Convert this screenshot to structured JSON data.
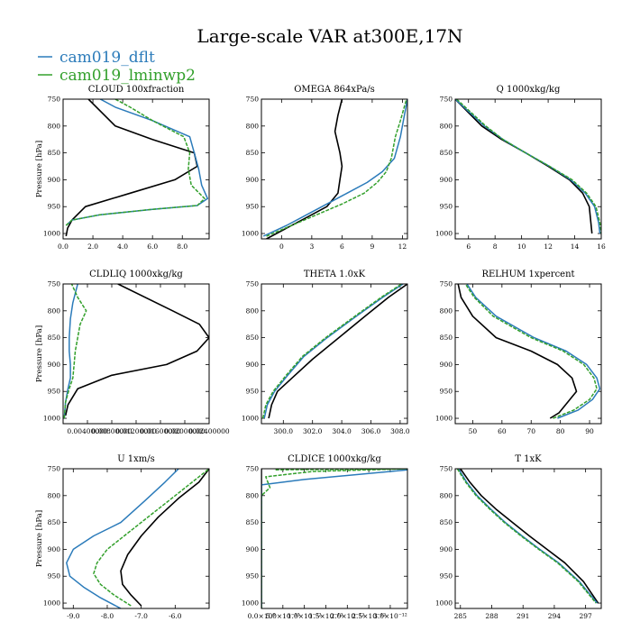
{
  "figure": {
    "title": "Large-scale VAR at300E,17N"
  },
  "legend": [
    {
      "name": "cam019_dflt",
      "color": "#2b7bba"
    },
    {
      "name": "cam019_lminwp2",
      "color": "#33a02c"
    }
  ],
  "colors": {
    "reference": "#000000",
    "dflt": "#2b7bba",
    "lminwp2": "#33a02c"
  },
  "chart_data": [
    {
      "type": "line",
      "title": "CLOUD 100xfraction",
      "ylabel": "Pressure [hPa]",
      "xlim": [
        0,
        9.8
      ],
      "ylim": [
        1010,
        750
      ],
      "xticks": [
        0,
        2,
        4,
        6,
        8
      ],
      "xtick_labels": [
        "0.0",
        "2.0",
        "4.0",
        "6.0",
        "8.0"
      ],
      "yticks": [
        750,
        800,
        850,
        900,
        950,
        1000
      ],
      "ytick_labels": [
        "750",
        "800",
        "850",
        "900",
        "950",
        "1000"
      ],
      "series": [
        {
          "name": "reference",
          "style": "ref",
          "x": [
            0.2,
            0.3,
            0.6,
            1.5,
            4.5,
            7.5,
            9.0,
            8.8,
            6.0,
            3.5,
            1.7
          ],
          "y": [
            1005,
            990,
            975,
            950,
            925,
            900,
            875,
            850,
            825,
            800,
            750
          ]
        },
        {
          "name": "cam019_dflt",
          "style": "dflt",
          "x": [
            0.2,
            0.6,
            2.5,
            6.0,
            9.0,
            9.7,
            9.3,
            9.1,
            8.8,
            8.5,
            6.0,
            3.5,
            2.5
          ],
          "y": [
            985,
            975,
            965,
            955,
            948,
            935,
            910,
            880,
            850,
            820,
            790,
            765,
            750
          ]
        },
        {
          "name": "cam019_lminwp2",
          "style": "lminwp2",
          "x": [
            0.2,
            0.6,
            2.5,
            6.0,
            9.0,
            9.5,
            8.6,
            8.4,
            8.5,
            8.1,
            6.0,
            4.5,
            3.5
          ],
          "y": [
            985,
            975,
            965,
            955,
            948,
            935,
            910,
            880,
            850,
            820,
            790,
            765,
            750
          ]
        }
      ]
    },
    {
      "type": "line",
      "title": "OMEGA 864xPa/s",
      "ylabel": "",
      "xlim": [
        -2,
        12.5
      ],
      "ylim": [
        1010,
        750
      ],
      "xticks": [
        0,
        3,
        6,
        9,
        12
      ],
      "xtick_labels": [
        "0",
        "3",
        "6",
        "9",
        "12"
      ],
      "yticks": [
        750,
        800,
        850,
        900,
        950,
        1000
      ],
      "ytick_labels": [
        "750",
        "800",
        "850",
        "900",
        "950",
        "1000"
      ],
      "series": [
        {
          "name": "reference",
          "style": "ref",
          "x": [
            -1.5,
            0.5,
            2.5,
            4.5,
            5.6,
            5.8,
            6.0,
            5.8,
            5.3,
            5.6,
            6.0
          ],
          "y": [
            1010,
            990,
            970,
            950,
            925,
            900,
            875,
            850,
            810,
            780,
            750
          ]
        },
        {
          "name": "cam019_dflt",
          "style": "dflt",
          "x": [
            -1.8,
            0.5,
            2.5,
            4.5,
            6.5,
            8.5,
            10.0,
            11.2,
            11.8,
            12.1,
            12.5
          ],
          "y": [
            1005,
            985,
            965,
            945,
            925,
            905,
            885,
            860,
            820,
            790,
            750
          ]
        },
        {
          "name": "cam019_lminwp2",
          "style": "lminwp2",
          "x": [
            -1.5,
            1.0,
            3.5,
            6.0,
            8.2,
            9.5,
            10.4,
            10.9,
            11.3,
            11.8,
            12.4
          ],
          "y": [
            1005,
            985,
            965,
            945,
            925,
            905,
            885,
            860,
            820,
            790,
            750
          ]
        }
      ]
    },
    {
      "type": "line",
      "title": "Q 1000xkg/kg",
      "ylabel": "",
      "xlim": [
        5,
        16
      ],
      "ylim": [
        1010,
        750
      ],
      "xticks": [
        6,
        8,
        10,
        12,
        14,
        16
      ],
      "xtick_labels": [
        "6",
        "8",
        "10",
        "12",
        "14",
        "16"
      ],
      "yticks": [
        750,
        800,
        850,
        900,
        950,
        1000
      ],
      "ytick_labels": [
        "750",
        "800",
        "850",
        "900",
        "950",
        "1000"
      ],
      "series": [
        {
          "name": "reference",
          "style": "ref",
          "x": [
            5.0,
            6.0,
            7.0,
            8.5,
            10.3,
            12.0,
            13.6,
            14.6,
            15.1,
            15.3
          ],
          "y": [
            750,
            775,
            800,
            825,
            850,
            875,
            900,
            925,
            950,
            1000
          ]
        },
        {
          "name": "cam019_dflt",
          "style": "dflt",
          "x": [
            5.0,
            6.1,
            7.2,
            8.6,
            10.3,
            12.1,
            13.7,
            14.8,
            15.5,
            15.8,
            15.9
          ],
          "y": [
            750,
            775,
            800,
            825,
            850,
            875,
            900,
            925,
            950,
            980,
            1000
          ]
        },
        {
          "name": "cam019_lminwp2",
          "style": "lminwp2",
          "x": [
            5.1,
            6.2,
            7.3,
            8.6,
            10.3,
            12.1,
            13.8,
            14.9,
            15.6,
            15.9,
            16.0
          ],
          "y": [
            750,
            775,
            800,
            825,
            850,
            875,
            900,
            925,
            950,
            980,
            1000
          ]
        }
      ]
    },
    {
      "type": "line",
      "title": "CLDLIQ 1000xkg/kg",
      "ylabel": "Pressure [hPa]",
      "xlim": [
        0,
        0.00012
      ],
      "ylim": [
        1010,
        750
      ],
      "xticks": [
        2e-05,
        4e-05,
        6e-05,
        8e-05,
        0.0001,
        0.00012
      ],
      "xtick_labels": [
        "0.00400000",
        "0.00800000",
        "0.01200000",
        "0.01600000",
        "0.02000000",
        "0.02400000"
      ],
      "yticks": [
        750,
        800,
        850,
        900,
        950,
        1000
      ],
      "ytick_labels": [
        "750",
        "800",
        "850",
        "900",
        "950",
        "1000"
      ],
      "series": [
        {
          "name": "reference",
          "style": "ref",
          "x": [
            2e-06,
            4e-06,
            1.2e-05,
            4e-05,
            8.5e-05,
            0.00011,
            0.00012,
            0.000112,
            9e-05,
            4.5e-05
          ],
          "y": [
            995,
            975,
            945,
            920,
            900,
            875,
            850,
            825,
            800,
            750
          ]
        },
        {
          "name": "cam019_dflt",
          "style": "dflt",
          "x": [
            1e-06,
            2e-06,
            4e-06,
            6e-06,
            6e-06,
            5e-06,
            5e-06,
            6e-06,
            8e-06,
            1.2e-05
          ],
          "y": [
            1000,
            970,
            945,
            925,
            900,
            875,
            850,
            815,
            785,
            750
          ]
        },
        {
          "name": "cam019_lminwp2",
          "style": "lminwp2",
          "x": [
            1e-06,
            2e-06,
            5e-06,
            8e-06,
            9e-06,
            1e-05,
            1.2e-05,
            1.4e-05,
            1.9e-05,
            1.2e-05,
            7e-06
          ],
          "y": [
            1000,
            970,
            945,
            925,
            900,
            875,
            850,
            825,
            800,
            775,
            750
          ]
        }
      ]
    },
    {
      "type": "line",
      "title": "THETA 1.0xK",
      "ylabel": "",
      "xlim": [
        298.5,
        308.5
      ],
      "ylim": [
        1010,
        750
      ],
      "xticks": [
        300,
        302,
        304,
        306,
        308
      ],
      "xtick_labels": [
        "300.0",
        "302.0",
        "304.0",
        "306.0",
        "308.0"
      ],
      "yticks": [
        750,
        800,
        850,
        900,
        950,
        1000
      ],
      "ytick_labels": [
        "750",
        "800",
        "850",
        "900",
        "950",
        "1000"
      ],
      "series": [
        {
          "name": "reference",
          "style": "ref",
          "x": [
            299.0,
            299.2,
            299.6,
            300.6,
            302.0,
            303.8,
            305.6,
            307.2,
            308.5
          ],
          "y": [
            1000,
            975,
            950,
            925,
            890,
            850,
            810,
            775,
            750
          ]
        },
        {
          "name": "cam019_dflt",
          "style": "dflt",
          "x": [
            298.7,
            298.9,
            299.4,
            300.3,
            301.4,
            303.0,
            305.0,
            306.8,
            308.2
          ],
          "y": [
            1000,
            975,
            950,
            920,
            885,
            850,
            810,
            775,
            750
          ]
        },
        {
          "name": "cam019_lminwp2",
          "style": "lminwp2",
          "x": [
            298.6,
            298.8,
            299.3,
            300.2,
            301.3,
            302.9,
            304.9,
            306.7,
            308.1
          ],
          "y": [
            1000,
            975,
            950,
            920,
            885,
            850,
            810,
            775,
            750
          ]
        }
      ]
    },
    {
      "type": "line",
      "title": "RELHUM 1xpercent",
      "ylabel": "",
      "xlim": [
        44,
        94
      ],
      "ylim": [
        1010,
        750
      ],
      "xticks": [
        50,
        60,
        70,
        80,
        90
      ],
      "xtick_labels": [
        "50",
        "60",
        "70",
        "80",
        "90"
      ],
      "yticks": [
        750,
        800,
        850,
        900,
        950,
        1000
      ],
      "ytick_labels": [
        "750",
        "800",
        "850",
        "900",
        "950",
        "1000"
      ],
      "series": [
        {
          "name": "reference",
          "style": "ref",
          "x": [
            76.5,
            79.5,
            82.5,
            85.5,
            84.0,
            79.0,
            70.0,
            58.0,
            50.0,
            46.0,
            45.0
          ],
          "y": [
            1000,
            990,
            970,
            950,
            925,
            900,
            875,
            850,
            810,
            775,
            750
          ]
        },
        {
          "name": "cam019_dflt",
          "style": "dflt",
          "x": [
            79.0,
            86.0,
            91.0,
            93.5,
            92.5,
            89.0,
            82.0,
            71.0,
            58.0,
            51.0,
            48.0
          ],
          "y": [
            1000,
            985,
            965,
            945,
            925,
            900,
            875,
            850,
            810,
            775,
            750
          ]
        },
        {
          "name": "cam019_lminwp2",
          "style": "lminwp2",
          "x": [
            77.5,
            84.5,
            90.0,
            92.5,
            91.5,
            88.0,
            81.0,
            70.0,
            57.0,
            50.5,
            47.5
          ],
          "y": [
            1000,
            985,
            965,
            945,
            925,
            900,
            875,
            850,
            810,
            775,
            750
          ]
        }
      ]
    },
    {
      "type": "line",
      "title": "U 1xm/s",
      "ylabel": "Pressure [hPa]",
      "xlim": [
        -9.3,
        -5.0
      ],
      "ylim": [
        1010,
        750
      ],
      "xticks": [
        -9,
        -8,
        -7,
        -6
      ],
      "xtick_labels": [
        "-9.0",
        "-8.0",
        "-7.0",
        "-6.0"
      ],
      "yticks": [
        750,
        800,
        850,
        900,
        950,
        1000
      ],
      "ytick_labels": [
        "750",
        "800",
        "850",
        "900",
        "950",
        "1000"
      ],
      "series": [
        {
          "name": "reference",
          "style": "ref",
          "x": [
            -7.0,
            -7.3,
            -7.55,
            -7.6,
            -7.4,
            -7.0,
            -6.5,
            -5.9,
            -5.3,
            -5.0
          ],
          "y": [
            1005,
            985,
            965,
            940,
            910,
            875,
            840,
            805,
            775,
            750
          ]
        },
        {
          "name": "cam019_dflt",
          "style": "dflt",
          "x": [
            -7.6,
            -8.2,
            -8.7,
            -9.1,
            -9.2,
            -9.0,
            -8.4,
            -7.6,
            -6.9,
            -6.3,
            -5.9
          ],
          "y": [
            1010,
            990,
            970,
            950,
            925,
            900,
            875,
            850,
            810,
            775,
            750
          ]
        },
        {
          "name": "cam019_lminwp2",
          "style": "lminwp2",
          "x": [
            -7.3,
            -7.8,
            -8.2,
            -8.4,
            -8.3,
            -8.0,
            -7.5,
            -6.9,
            -6.2,
            -5.5,
            -5.0
          ],
          "y": [
            1005,
            985,
            965,
            945,
            925,
            900,
            875,
            845,
            810,
            775,
            750
          ]
        }
      ]
    },
    {
      "type": "line",
      "title": "CLDICE 1000xkg/kg",
      "ylabel": "",
      "xlim": [
        0,
        3.4e-12
      ],
      "ylim": [
        1010,
        750
      ],
      "xticks": [
        0,
        5e-13,
        1e-12,
        1.5e-12,
        2e-12,
        2.5e-12,
        3e-12
      ],
      "xtick_labels": [
        "0.0×10⁰",
        "5.0×10⁻¹³",
        "1.0×10⁻¹²",
        "1.5×10⁻¹²",
        "2.0×10⁻¹²",
        "2.5×10⁻¹²",
        "3.0×10⁻¹²"
      ],
      "yticks": [
        750,
        800,
        850,
        900,
        950,
        1000
      ],
      "ytick_labels": [
        "750",
        "800",
        "850",
        "900",
        "950",
        "1000"
      ],
      "series": [
        {
          "name": "reference",
          "style": "ref",
          "x": [
            0,
            0
          ],
          "y": [
            1010,
            750
          ]
        },
        {
          "name": "cam019_dflt",
          "style": "dflt",
          "x": [
            0,
            0,
            1e-12,
            3.4e-12
          ],
          "y": [
            1010,
            780,
            770,
            752
          ]
        },
        {
          "name": "cam019_lminwp2",
          "style": "lminwp2",
          "x": [
            0,
            0,
            2e-13,
            1e-13,
            1.2e-12,
            3.4e-12,
            3e-13
          ],
          "y": [
            1010,
            800,
            785,
            765,
            755,
            750,
            752
          ]
        }
      ]
    },
    {
      "type": "line",
      "title": "T 1xK",
      "ylabel": "",
      "xlim": [
        284.5,
        298.5
      ],
      "ylim": [
        1010,
        750
      ],
      "xticks": [
        285,
        288,
        291,
        294,
        297
      ],
      "xtick_labels": [
        "285",
        "288",
        "291",
        "294",
        "297"
      ],
      "yticks": [
        750,
        800,
        850,
        900,
        950,
        1000
      ],
      "ytick_labels": [
        "750",
        "800",
        "850",
        "900",
        "950",
        "1000"
      ],
      "series": [
        {
          "name": "reference",
          "style": "ref",
          "x": [
            285.0,
            285.9,
            287.0,
            288.4,
            290.0,
            291.6,
            293.3,
            295.0,
            296.8,
            298.2
          ],
          "y": [
            750,
            775,
            800,
            825,
            850,
            875,
            900,
            925,
            960,
            1000
          ]
        },
        {
          "name": "cam019_dflt",
          "style": "dflt",
          "x": [
            284.8,
            285.6,
            286.6,
            287.9,
            289.3,
            290.9,
            292.6,
            294.4,
            296.4,
            298.1
          ],
          "y": [
            750,
            775,
            800,
            825,
            850,
            875,
            900,
            925,
            960,
            1000
          ]
        },
        {
          "name": "cam019_lminwp2",
          "style": "lminwp2",
          "x": [
            284.7,
            285.5,
            286.5,
            287.8,
            289.2,
            290.8,
            292.5,
            294.3,
            296.3,
            298.0
          ],
          "y": [
            750,
            775,
            800,
            825,
            850,
            875,
            900,
            925,
            960,
            1000
          ]
        }
      ]
    }
  ]
}
